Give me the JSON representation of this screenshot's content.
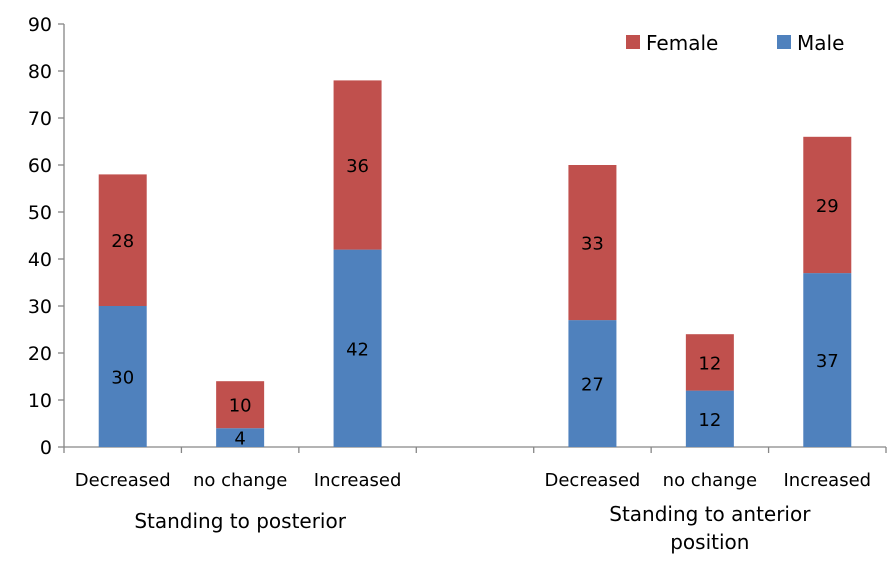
{
  "chart_data": {
    "type": "bar",
    "stacked": true,
    "title": "",
    "xlabel": "",
    "ylabel": "",
    "ylim": [
      0,
      90
    ],
    "yticks": [
      0,
      10,
      20,
      30,
      40,
      50,
      60,
      70,
      80,
      90
    ],
    "groups": [
      {
        "label": "Standing to posterior",
        "categories": [
          "Decreased",
          "no change",
          "Increased"
        ]
      },
      {
        "label": "Standing to anterior position",
        "categories": [
          "Decreased",
          "no change",
          "Increased"
        ]
      }
    ],
    "categories": [
      "Decreased",
      "no change",
      "Increased",
      "",
      "Decreased",
      "no change",
      "Increased"
    ],
    "series": [
      {
        "name": "Male",
        "color": "#4f81bd",
        "values": [
          30,
          4,
          42,
          null,
          27,
          12,
          37
        ]
      },
      {
        "name": "Female",
        "color": "#c0504d",
        "values": [
          28,
          10,
          36,
          null,
          33,
          12,
          29
        ]
      }
    ],
    "legend": {
      "position": "top-right",
      "order": [
        "Female",
        "Male"
      ]
    },
    "grid": false
  }
}
